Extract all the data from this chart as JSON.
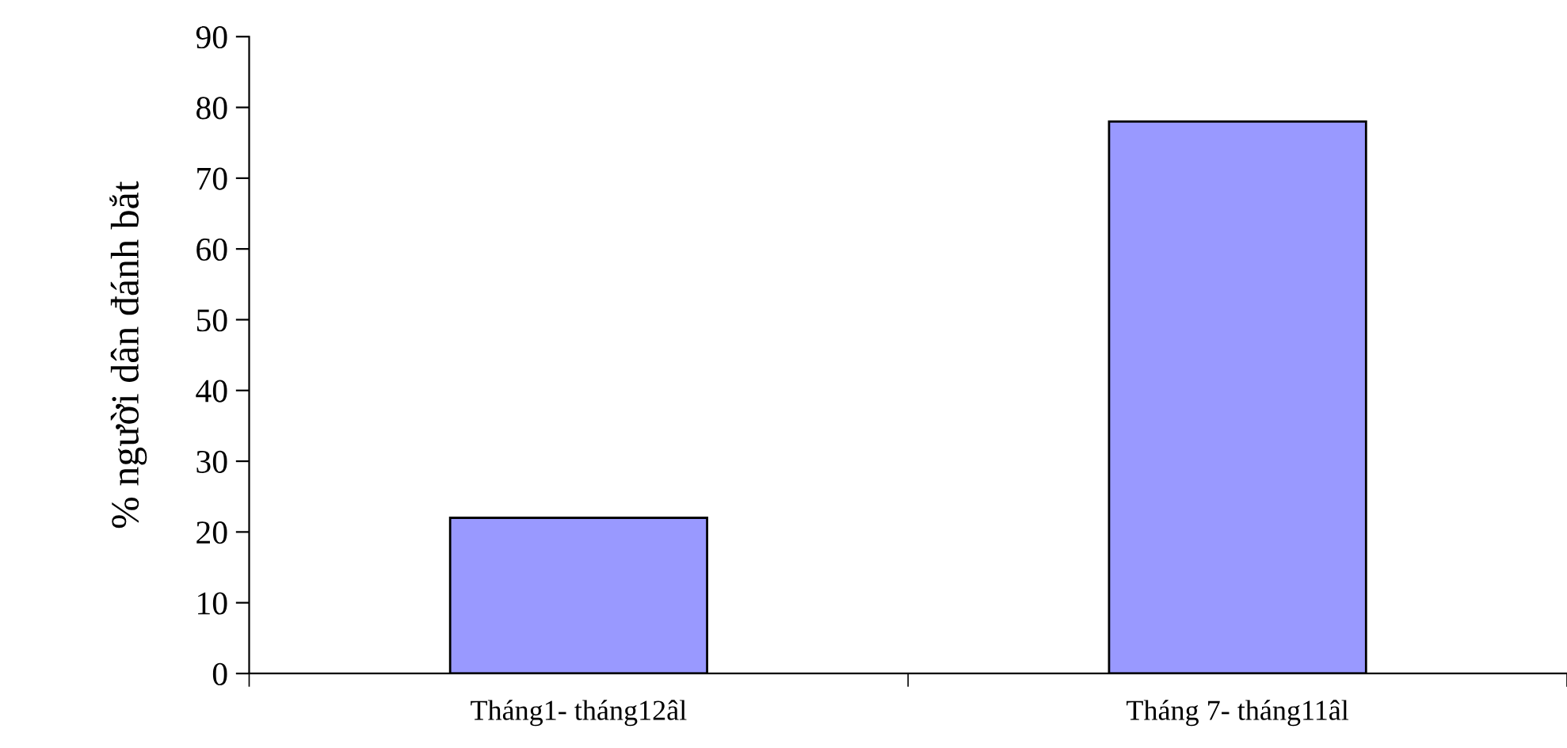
{
  "chart_data": {
    "type": "bar",
    "ylabel": "% người dân đánh bắt",
    "categories": [
      "Tháng1- tháng12âl",
      "Tháng 7- tháng11âl"
    ],
    "values": [
      22,
      78
    ],
    "color": "#9999ff",
    "ylim": [
      0,
      90
    ],
    "yticks": [
      0,
      10,
      20,
      30,
      40,
      50,
      60,
      70,
      80,
      90
    ],
    "grid": false,
    "legend": false
  }
}
